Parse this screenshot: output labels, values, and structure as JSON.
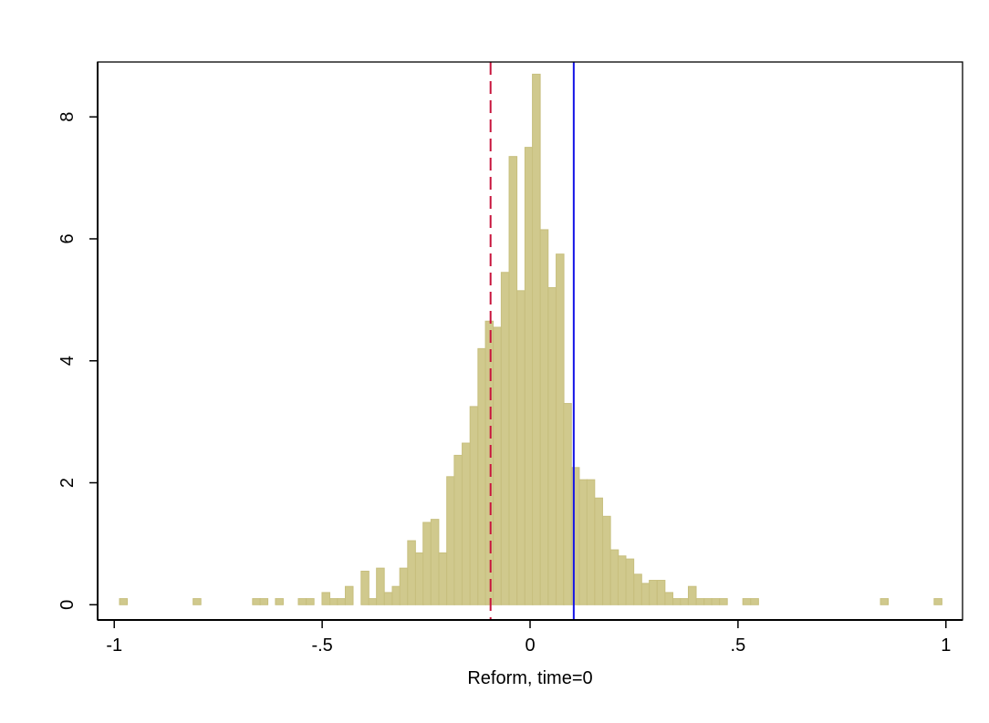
{
  "chart_data": {
    "type": "bar",
    "title": "",
    "xlabel": "Reform, time=0",
    "ylabel": "",
    "xlim": [
      -1.04,
      1.04
    ],
    "ylim": [
      -0.25,
      8.9
    ],
    "grid": false,
    "legend": "none",
    "bar_fill": "#d0c98d",
    "bar_edge": "#c7bf7e",
    "x_ticks": [
      {
        "value": -1,
        "label": "-1"
      },
      {
        "value": -0.5,
        "label": "-.5"
      },
      {
        "value": 0,
        "label": "0"
      },
      {
        "value": 0.5,
        "label": ".5"
      },
      {
        "value": 1,
        "label": "1"
      }
    ],
    "y_ticks": [
      {
        "value": 0,
        "label": "0"
      },
      {
        "value": 2,
        "label": "2"
      },
      {
        "value": 4,
        "label": "4"
      },
      {
        "value": 6,
        "label": "6"
      },
      {
        "value": 8,
        "label": "8"
      }
    ],
    "bin_width": 0.0187,
    "bins": [
      {
        "x": -0.978,
        "density": 0.1
      },
      {
        "x": -0.801,
        "density": 0.1
      },
      {
        "x": -0.658,
        "density": 0.1
      },
      {
        "x": -0.64,
        "density": 0.1
      },
      {
        "x": -0.603,
        "density": 0.1
      },
      {
        "x": -0.548,
        "density": 0.1
      },
      {
        "x": -0.529,
        "density": 0.1
      },
      {
        "x": -0.491,
        "density": 0.2
      },
      {
        "x": -0.472,
        "density": 0.1
      },
      {
        "x": -0.454,
        "density": 0.1
      },
      {
        "x": -0.435,
        "density": 0.3
      },
      {
        "x": -0.397,
        "density": 0.55
      },
      {
        "x": -0.379,
        "density": 0.1
      },
      {
        "x": -0.36,
        "density": 0.6
      },
      {
        "x": -0.341,
        "density": 0.2
      },
      {
        "x": -0.322,
        "density": 0.3
      },
      {
        "x": -0.304,
        "density": 0.6
      },
      {
        "x": -0.285,
        "density": 1.05
      },
      {
        "x": -0.266,
        "density": 0.85
      },
      {
        "x": -0.248,
        "density": 1.35
      },
      {
        "x": -0.229,
        "density": 1.4
      },
      {
        "x": -0.21,
        "density": 0.85
      },
      {
        "x": -0.191,
        "density": 2.1
      },
      {
        "x": -0.173,
        "density": 2.45
      },
      {
        "x": -0.154,
        "density": 2.65
      },
      {
        "x": -0.135,
        "density": 3.25
      },
      {
        "x": -0.116,
        "density": 4.2
      },
      {
        "x": -0.098,
        "density": 4.65
      },
      {
        "x": -0.079,
        "density": 4.55
      },
      {
        "x": -0.06,
        "density": 5.45
      },
      {
        "x": -0.041,
        "density": 7.35
      },
      {
        "x": -0.022,
        "density": 5.15
      },
      {
        "x": -0.003,
        "density": 7.5
      },
      {
        "x": 0.015,
        "density": 8.7
      },
      {
        "x": 0.034,
        "density": 6.15
      },
      {
        "x": 0.053,
        "density": 5.2
      },
      {
        "x": 0.072,
        "density": 5.75
      },
      {
        "x": 0.09,
        "density": 3.3
      },
      {
        "x": 0.109,
        "density": 2.25
      },
      {
        "x": 0.128,
        "density": 2.05
      },
      {
        "x": 0.146,
        "density": 2.05
      },
      {
        "x": 0.165,
        "density": 1.75
      },
      {
        "x": 0.184,
        "density": 1.45
      },
      {
        "x": 0.203,
        "density": 0.9
      },
      {
        "x": 0.221,
        "density": 0.8
      },
      {
        "x": 0.24,
        "density": 0.75
      },
      {
        "x": 0.259,
        "density": 0.5
      },
      {
        "x": 0.278,
        "density": 0.35
      },
      {
        "x": 0.296,
        "density": 0.4
      },
      {
        "x": 0.315,
        "density": 0.4
      },
      {
        "x": 0.334,
        "density": 0.2
      },
      {
        "x": 0.353,
        "density": 0.1
      },
      {
        "x": 0.371,
        "density": 0.1
      },
      {
        "x": 0.39,
        "density": 0.3
      },
      {
        "x": 0.409,
        "density": 0.1
      },
      {
        "x": 0.428,
        "density": 0.1
      },
      {
        "x": 0.446,
        "density": 0.1
      },
      {
        "x": 0.465,
        "density": 0.1
      },
      {
        "x": 0.521,
        "density": 0.1
      },
      {
        "x": 0.54,
        "density": 0.1
      },
      {
        "x": 0.852,
        "density": 0.1
      },
      {
        "x": 0.981,
        "density": 0.1
      }
    ],
    "reference_lines": [
      {
        "x": -0.095,
        "color": "#c8143c",
        "style": "dashed"
      },
      {
        "x": 0.105,
        "color": "#1414e6",
        "style": "solid"
      }
    ]
  }
}
